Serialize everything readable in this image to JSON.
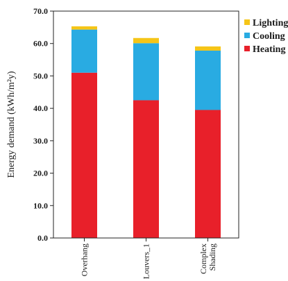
{
  "chart_data": {
    "type": "bar",
    "stacked": true,
    "title": "",
    "xlabel": "",
    "ylabel": "Energy demand (kWh/m²y)",
    "ylim": [
      0,
      70
    ],
    "yticks": [
      "0.0",
      "10.0",
      "20.0",
      "30.0",
      "40.0",
      "50.0",
      "60.0",
      "70.0"
    ],
    "grid": false,
    "legend_position": "top-right",
    "categories": [
      {
        "lines": [
          "Overhang"
        ]
      },
      {
        "lines": [
          "Louvers_1"
        ]
      },
      {
        "lines": [
          "Complex",
          "Shading"
        ]
      }
    ],
    "series": [
      {
        "name": "Heating",
        "color": "#e8202a",
        "values": [
          51.0,
          42.5,
          39.5
        ]
      },
      {
        "name": "Cooling",
        "color": "#29abe2",
        "values": [
          13.3,
          17.6,
          18.3
        ]
      },
      {
        "name": "Lighting",
        "color": "#f5c518",
        "values": [
          1.0,
          1.6,
          1.3
        ]
      }
    ],
    "legend_order": [
      "Lighting",
      "Cooling",
      "Heating"
    ]
  }
}
